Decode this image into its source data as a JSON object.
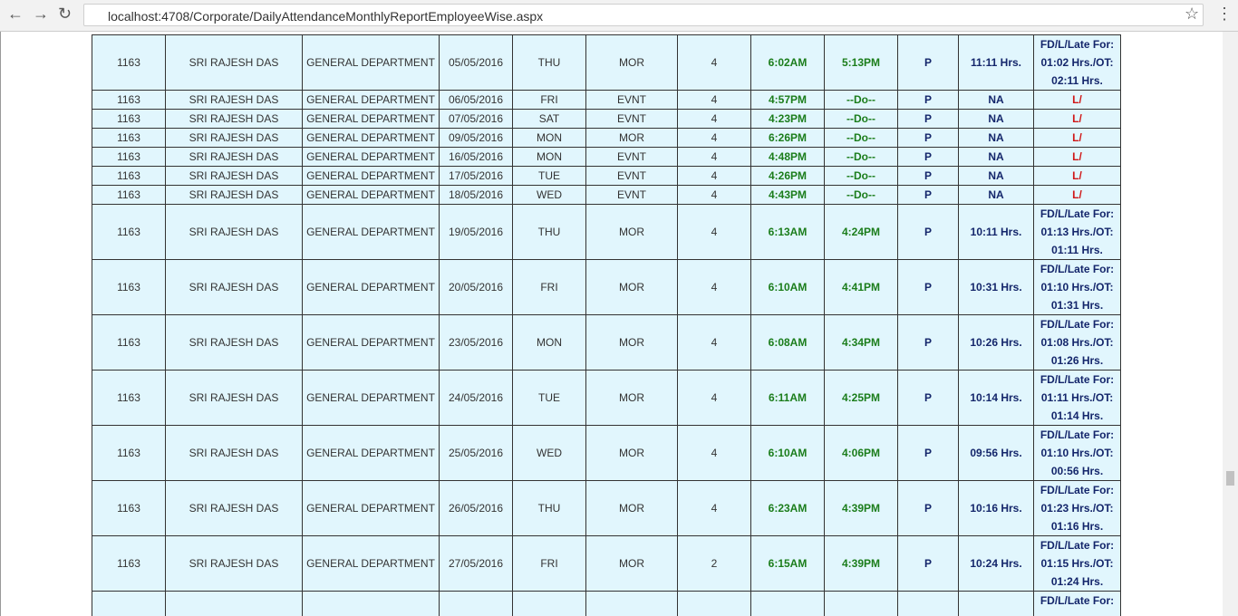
{
  "browser": {
    "url": "localhost:4708/Corporate/DailyAttendanceMonthlyReportEmployeeWise.aspx"
  },
  "table": {
    "rows": [
      [
        "1163",
        "SRI RAJESH DAS",
        "GENERAL DEPARTMENT",
        "05/05/2016",
        "THU",
        "MOR",
        "4",
        "6:02AM",
        "5:13PM",
        "P",
        "11:11 Hrs.",
        "FD/L/Late For: 01:02 Hrs./OT: 02:11 Hrs."
      ],
      [
        "1163",
        "SRI RAJESH DAS",
        "GENERAL DEPARTMENT",
        "06/05/2016",
        "FRI",
        "EVNT",
        "4",
        "4:57PM",
        "--Do--",
        "P",
        "NA",
        "L/"
      ],
      [
        "1163",
        "SRI RAJESH DAS",
        "GENERAL DEPARTMENT",
        "07/05/2016",
        "SAT",
        "EVNT",
        "4",
        "4:23PM",
        "--Do--",
        "P",
        "NA",
        "L/"
      ],
      [
        "1163",
        "SRI RAJESH DAS",
        "GENERAL DEPARTMENT",
        "09/05/2016",
        "MON",
        "MOR",
        "4",
        "6:26PM",
        "--Do--",
        "P",
        "NA",
        "L/"
      ],
      [
        "1163",
        "SRI RAJESH DAS",
        "GENERAL DEPARTMENT",
        "16/05/2016",
        "MON",
        "EVNT",
        "4",
        "4:48PM",
        "--Do--",
        "P",
        "NA",
        "L/"
      ],
      [
        "1163",
        "SRI RAJESH DAS",
        "GENERAL DEPARTMENT",
        "17/05/2016",
        "TUE",
        "EVNT",
        "4",
        "4:26PM",
        "--Do--",
        "P",
        "NA",
        "L/"
      ],
      [
        "1163",
        "SRI RAJESH DAS",
        "GENERAL DEPARTMENT",
        "18/05/2016",
        "WED",
        "EVNT",
        "4",
        "4:43PM",
        "--Do--",
        "P",
        "NA",
        "L/"
      ],
      [
        "1163",
        "SRI RAJESH DAS",
        "GENERAL DEPARTMENT",
        "19/05/2016",
        "THU",
        "MOR",
        "4",
        "6:13AM",
        "4:24PM",
        "P",
        "10:11 Hrs.",
        "FD/L/Late For: 01:13 Hrs./OT: 01:11 Hrs."
      ],
      [
        "1163",
        "SRI RAJESH DAS",
        "GENERAL DEPARTMENT",
        "20/05/2016",
        "FRI",
        "MOR",
        "4",
        "6:10AM",
        "4:41PM",
        "P",
        "10:31 Hrs.",
        "FD/L/Late For: 01:10 Hrs./OT: 01:31 Hrs."
      ],
      [
        "1163",
        "SRI RAJESH DAS",
        "GENERAL DEPARTMENT",
        "23/05/2016",
        "MON",
        "MOR",
        "4",
        "6:08AM",
        "4:34PM",
        "P",
        "10:26 Hrs.",
        "FD/L/Late For: 01:08 Hrs./OT: 01:26 Hrs."
      ],
      [
        "1163",
        "SRI RAJESH DAS",
        "GENERAL DEPARTMENT",
        "24/05/2016",
        "TUE",
        "MOR",
        "4",
        "6:11AM",
        "4:25PM",
        "P",
        "10:14 Hrs.",
        "FD/L/Late For: 01:11 Hrs./OT: 01:14 Hrs."
      ],
      [
        "1163",
        "SRI RAJESH DAS",
        "GENERAL DEPARTMENT",
        "25/05/2016",
        "WED",
        "MOR",
        "4",
        "6:10AM",
        "4:06PM",
        "P",
        "09:56 Hrs.",
        "FD/L/Late For: 01:10 Hrs./OT: 00:56 Hrs."
      ],
      [
        "1163",
        "SRI RAJESH DAS",
        "GENERAL DEPARTMENT",
        "26/05/2016",
        "THU",
        "MOR",
        "4",
        "6:23AM",
        "4:39PM",
        "P",
        "10:16 Hrs.",
        "FD/L/Late For: 01:23 Hrs./OT: 01:16 Hrs."
      ],
      [
        "1163",
        "SRI RAJESH DAS",
        "GENERAL DEPARTMENT",
        "27/05/2016",
        "FRI",
        "MOR",
        "2",
        "6:15AM",
        "4:39PM",
        "P",
        "10:24 Hrs.",
        "FD/L/Late For: 01:15 Hrs./OT: 01:24 Hrs."
      ]
    ],
    "partial_row_remark": "FD/L/Late For:"
  }
}
